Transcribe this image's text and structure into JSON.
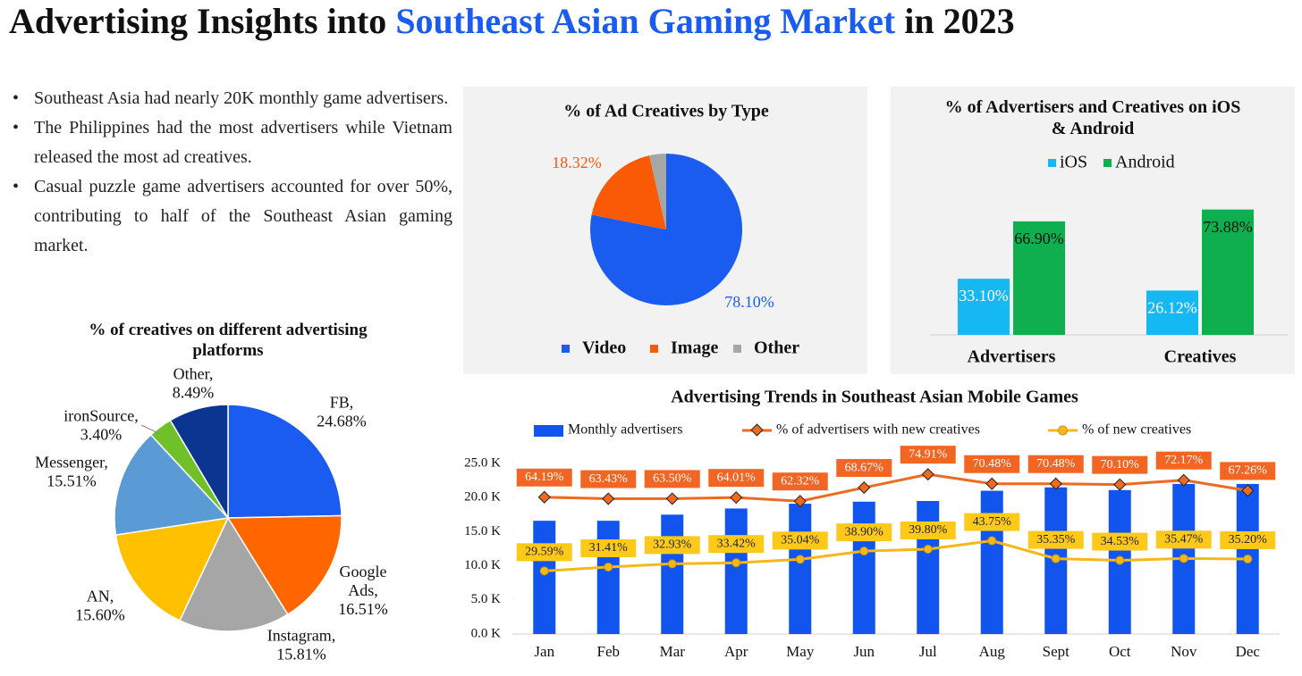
{
  "title": {
    "prefix": "Advertising Insights into ",
    "highlight": "Southeast Asian Gaming Market",
    "suffix": " in 2023"
  },
  "bullets": [
    "Southeast Asia had nearly 20K monthly game advertisers.",
    "The Philippines had the most advertisers while Vietnam released the most ad creatives.",
    "Casual puzzle game advertisers accounted for over 50%, contributing to half of the Southeast Asian gaming market."
  ],
  "chart_data": [
    {
      "type": "pie",
      "title": "% of Ad Creatives by Type",
      "categories": [
        "Video",
        "Image",
        "Other"
      ],
      "values": [
        78.1,
        18.32,
        3.58
      ],
      "value_labels": [
        "78.10%",
        "18.32%",
        null
      ],
      "colors": [
        "#1a5cf0",
        "#fa5a05",
        "#a6a6a6"
      ],
      "legend": "bottom"
    },
    {
      "type": "bar",
      "title": "% of Advertisers and Creatives on iOS & Android",
      "categories": [
        "Advertisers",
        "Creatives"
      ],
      "legend": "top",
      "series": [
        {
          "name": "iOS",
          "color": "#16b8f3",
          "values": [
            33.1,
            26.12
          ],
          "value_labels": [
            "33.10%",
            "26.12%"
          ]
        },
        {
          "name": "Android",
          "color": "#0fae4f",
          "values": [
            66.9,
            73.88
          ],
          "value_labels": [
            "66.90%",
            "73.88%"
          ]
        }
      ]
    },
    {
      "type": "pie",
      "title": "% of creatives on different advertising platforms",
      "categories": [
        "FB,",
        "Google Ads,",
        "Instagram,",
        "AN,",
        "Messenger,",
        "ironSource,",
        "Other,"
      ],
      "values": [
        24.68,
        16.51,
        15.81,
        15.6,
        15.51,
        3.4,
        8.49
      ],
      "value_labels": [
        "24.68%",
        "16.51%",
        "15.81%",
        "15.60%",
        "15.51%",
        "3.40%",
        "8.49%"
      ],
      "colors": [
        "#1a5cf0",
        "#ff6600",
        "#a6a6a6",
        "#ffc000",
        "#5b9bd5",
        "#70c02a",
        "#0a3591"
      ]
    },
    {
      "type": "combo",
      "title": "Advertising Trends in Southeast Asian Mobile Games",
      "categories": [
        "Jan",
        "Feb",
        "Mar",
        "Apr",
        "May",
        "Jun",
        "Jul",
        "Aug",
        "Sept",
        "Oct",
        "Nov",
        "Dec"
      ],
      "ylim": [
        0,
        25000
      ],
      "yticks": [
        {
          "value": 0,
          "label": "0.0 K"
        },
        {
          "value": 5000,
          "label": "5.0 K"
        },
        {
          "value": 10000,
          "label": "10.0 K"
        },
        {
          "value": 15000,
          "label": "15.0 K"
        },
        {
          "value": 20000,
          "label": "20.0 K"
        },
        {
          "value": 25000,
          "label": "25.0 K"
        }
      ],
      "y2lim": [
        0,
        80
      ],
      "legend": "top",
      "series": [
        {
          "name": "Monthly advertisers",
          "type": "bar",
          "color": "#1155ee",
          "values": [
            16600,
            16600,
            17500,
            18400,
            19100,
            19400,
            19500,
            21000,
            21500,
            21100,
            22000,
            22000
          ]
        },
        {
          "name": "% of advertisers with new creatives",
          "type": "line",
          "axis": "y2",
          "color": "#ee6a1e",
          "values": [
            64.19,
            63.43,
            63.5,
            64.01,
            62.32,
            68.67,
            74.91,
            70.48,
            70.48,
            70.1,
            72.17,
            67.26
          ],
          "value_labels": [
            "64.19%",
            "63.43%",
            "63.50%",
            "64.01%",
            "62.32%",
            "68.67%",
            "74.91%",
            "70.48%",
            "70.48%",
            "70.10%",
            "72.17%",
            "67.26%"
          ]
        },
        {
          "name": "% of new creatives",
          "type": "line",
          "axis": "y2",
          "color": "#f5b818",
          "values": [
            29.59,
            31.41,
            32.93,
            33.42,
            35.04,
            38.9,
            39.8,
            43.75,
            35.35,
            34.53,
            35.47,
            35.2
          ],
          "value_labels": [
            "29.59%",
            "31.41%",
            "32.93%",
            "33.42%",
            "35.04%",
            "38.90%",
            "39.80%",
            "43.75%",
            "35.35%",
            "34.53%",
            "35.47%",
            "35.20%"
          ]
        }
      ]
    }
  ]
}
